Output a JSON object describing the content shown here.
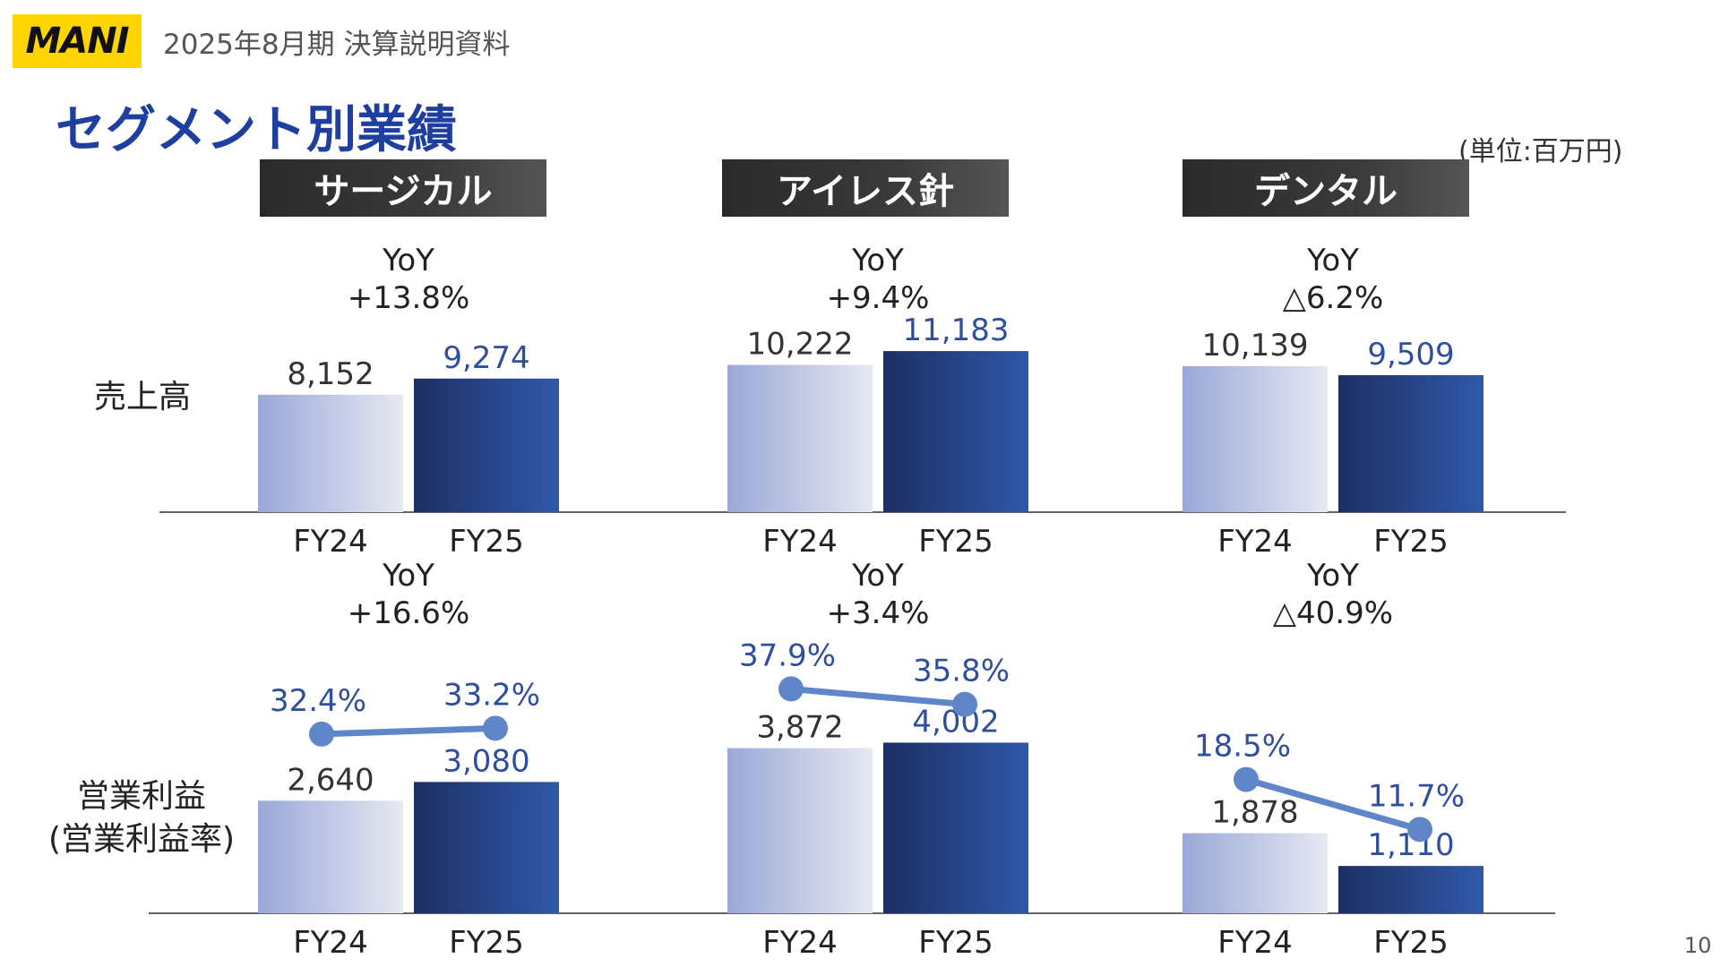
{
  "header": {
    "logo_text": "MANI",
    "doc_title": "2025年8月期 決算説明資料",
    "page_title": "セグメント別業績",
    "unit": "(単位:百万円)",
    "page_number": "10"
  },
  "row_labels": {
    "sales": "売上高",
    "profit_line1": "営業利益",
    "profit_line2": "(営業利益率)"
  },
  "colors": {
    "fy24_bar_gradient": [
      "#9aa8d8",
      "#e6e8f2"
    ],
    "fy25_bar_gradient": [
      "#1c2f63",
      "#3058aa"
    ],
    "fy25_label": "#2f4f9e",
    "margin_line": "#5e86c8",
    "header_bg": "#333333"
  },
  "chart_data": [
    {
      "type": "bar",
      "segment": "サージカル",
      "metric": "売上高",
      "categories": [
        "FY24",
        "FY25"
      ],
      "values": [
        8152,
        9274
      ],
      "value_labels": [
        "8,152",
        "9,274"
      ],
      "yoy_label": "YoY",
      "yoy": "+13.8%"
    },
    {
      "type": "bar",
      "segment": "アイレス針",
      "metric": "売上高",
      "categories": [
        "FY24",
        "FY25"
      ],
      "values": [
        10222,
        11183
      ],
      "value_labels": [
        "10,222",
        "11,183"
      ],
      "yoy_label": "YoY",
      "yoy": "+9.4%"
    },
    {
      "type": "bar",
      "segment": "デンタル",
      "metric": "売上高",
      "categories": [
        "FY24",
        "FY25"
      ],
      "values": [
        10139,
        9509
      ],
      "value_labels": [
        "10,139",
        "9,509"
      ],
      "yoy_label": "YoY",
      "yoy": "△6.2%"
    },
    {
      "type": "bar",
      "segment": "サージカル",
      "metric": "営業利益",
      "categories": [
        "FY24",
        "FY25"
      ],
      "values": [
        2640,
        3080
      ],
      "value_labels": [
        "2,640",
        "3,080"
      ],
      "margins": [
        32.4,
        33.2
      ],
      "margin_labels": [
        "32.4%",
        "33.2%"
      ],
      "yoy_label": "YoY",
      "yoy": "+16.6%"
    },
    {
      "type": "bar",
      "segment": "アイレス針",
      "metric": "営業利益",
      "categories": [
        "FY24",
        "FY25"
      ],
      "values": [
        3872,
        4002
      ],
      "value_labels": [
        "3,872",
        "4,002"
      ],
      "margins": [
        37.9,
        35.8
      ],
      "margin_labels": [
        "37.9%",
        "35.8%"
      ],
      "yoy_label": "YoY",
      "yoy": "+3.4%"
    },
    {
      "type": "bar",
      "segment": "デンタル",
      "metric": "営業利益",
      "categories": [
        "FY24",
        "FY25"
      ],
      "values": [
        1878,
        1110
      ],
      "value_labels": [
        "1,878",
        "1,110"
      ],
      "margins": [
        18.5,
        11.7
      ],
      "margin_labels": [
        "18.5%",
        "11.7%"
      ],
      "yoy_label": "YoY",
      "yoy": "△40.9%"
    }
  ]
}
